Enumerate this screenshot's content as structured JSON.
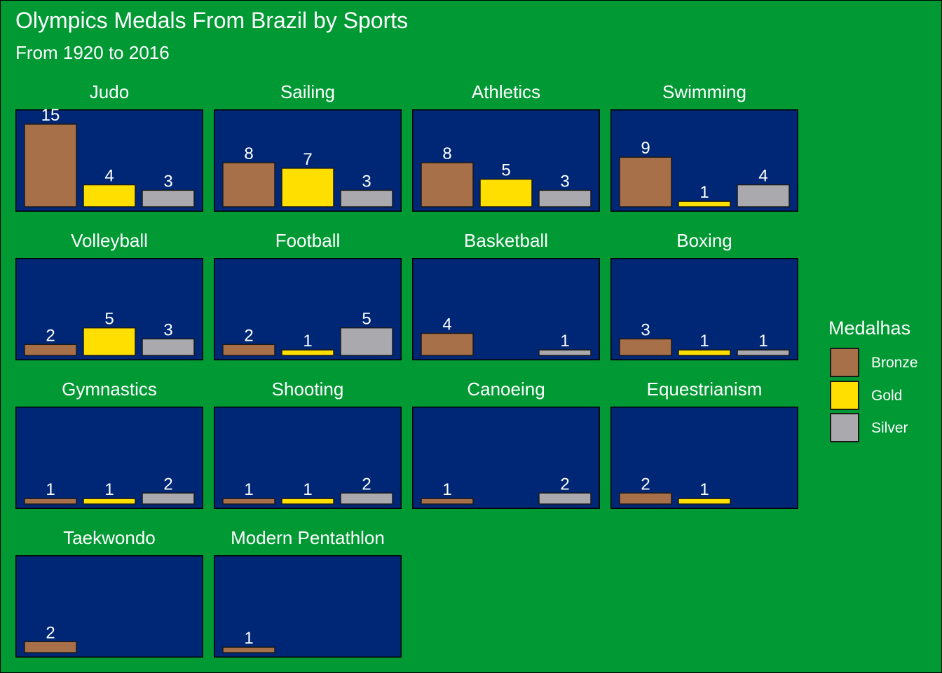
{
  "title": "Olympics Medals From Brazil by Sports",
  "subtitle": "From 1920 to 2016",
  "legend": {
    "title": "Medalhas",
    "items": [
      {
        "label": "Bronze",
        "color": "#a87049"
      },
      {
        "label": "Gold",
        "color": "#ffdf00"
      },
      {
        "label": "Silver",
        "color": "#aaa9ad"
      }
    ]
  },
  "colors": {
    "background": "#009933",
    "panel": "#002776",
    "text": "#ffffff"
  },
  "chart_data": {
    "type": "bar",
    "categories": [
      "Bronze",
      "Gold",
      "Silver"
    ],
    "ylim": [
      0,
      15
    ],
    "facets": [
      {
        "sport": "Judo",
        "values": [
          15,
          4,
          3
        ]
      },
      {
        "sport": "Sailing",
        "values": [
          8,
          7,
          3
        ]
      },
      {
        "sport": "Athletics",
        "values": [
          8,
          5,
          3
        ]
      },
      {
        "sport": "Swimming",
        "values": [
          9,
          1,
          4
        ]
      },
      {
        "sport": "Volleyball",
        "values": [
          2,
          5,
          3
        ]
      },
      {
        "sport": "Football",
        "values": [
          2,
          1,
          5
        ]
      },
      {
        "sport": "Basketball",
        "values": [
          4,
          null,
          1
        ]
      },
      {
        "sport": "Boxing",
        "values": [
          3,
          1,
          1
        ]
      },
      {
        "sport": "Gymnastics",
        "values": [
          1,
          1,
          2
        ]
      },
      {
        "sport": "Shooting",
        "values": [
          1,
          1,
          2
        ]
      },
      {
        "sport": "Canoeing",
        "values": [
          1,
          null,
          2
        ]
      },
      {
        "sport": "Equestrianism",
        "values": [
          2,
          1,
          null
        ]
      },
      {
        "sport": "Taekwondo",
        "values": [
          2,
          null,
          null
        ]
      },
      {
        "sport": "Modern Pentathlon",
        "values": [
          1,
          null,
          null
        ]
      }
    ]
  }
}
